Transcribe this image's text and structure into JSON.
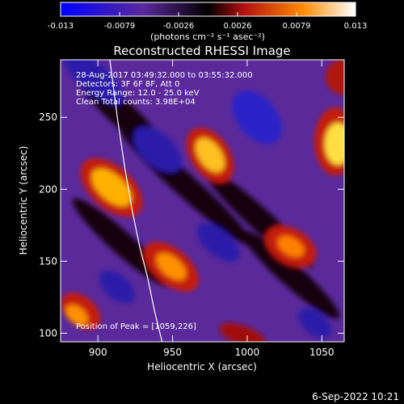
{
  "colorbar": {
    "ticks": [
      "-0.013",
      "-0.0079",
      "-0.0026",
      "0.0026",
      "0.0079",
      "0.013"
    ],
    "units": "(photons cm⁻² s⁻¹ asec⁻²)"
  },
  "chart_data": {
    "type": "heatmap",
    "title": "Reconstructed RHESSI Image",
    "xlabel": "Heliocentric X (arcsec)",
    "ylabel": "Heliocentric Y (arcsec)",
    "xlim": [
      875,
      1065
    ],
    "ylim": [
      94,
      290
    ],
    "xticks": [
      900,
      950,
      1000,
      1050
    ],
    "yticks": [
      100,
      150,
      200,
      250
    ],
    "zlim": [
      -0.013,
      0.013
    ],
    "colormap": "red-temperature (blue→purple→black→red→yellow→white)",
    "annotations": [
      "28-Aug-2017 03:49:32.000 to 03:55:32.000",
      "Detectors: 3F 6F 8F, Att 0",
      "Energy Range: 12.0 - 25.0 keV",
      "Clean     Total counts: 3.98E+04"
    ],
    "peak_label": "Position of Peak = [1059,226]",
    "peak": [
      1059,
      226
    ],
    "limb_curve": {
      "x": [
        908,
        913,
        918,
        923,
        928,
        933,
        938,
        943
      ],
      "y": [
        290,
        250,
        215,
        185,
        160,
        140,
        115,
        94
      ]
    }
  },
  "timestamp": "6-Sep-2022 10:21"
}
